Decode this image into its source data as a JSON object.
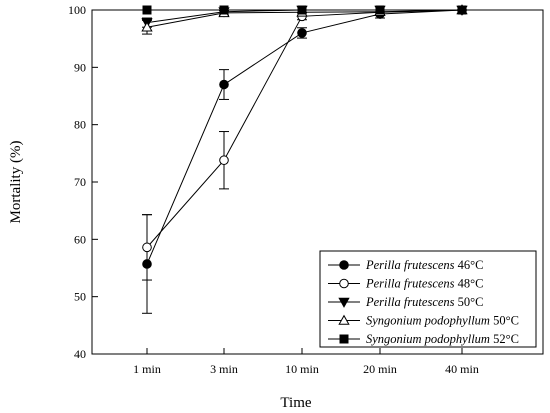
{
  "chart_data": {
    "type": "line",
    "title": "",
    "xlabel": "Time",
    "ylabel": "Mortality (%)",
    "categories": [
      "1 min",
      "3 min",
      "10 min",
      "20 min",
      "40 min"
    ],
    "ylim": [
      40,
      100
    ],
    "yticks": [
      40,
      50,
      60,
      70,
      80,
      90,
      100
    ],
    "grid": false,
    "legend_position": "bottom-right",
    "series": [
      {
        "name": "46°C",
        "species": "Perilla frutescens",
        "marker": "filled-circle",
        "values": [
          55.7,
          87.0,
          96.0,
          99.3,
          100
        ],
        "errors": [
          8.6,
          2.6,
          0.9,
          0.7,
          0
        ]
      },
      {
        "name": "48°C",
        "species": "Perilla frutescens",
        "marker": "open-circle",
        "values": [
          58.6,
          73.8,
          98.9,
          99.6,
          100
        ],
        "errors": [
          5.7,
          5.0,
          0.6,
          0.4,
          0
        ]
      },
      {
        "name": "50°C",
        "species": "Perilla frutescens",
        "marker": "filled-triangle-down",
        "values": [
          97.8,
          99.7,
          100,
          100,
          100
        ],
        "errors": [
          0.8,
          0.3,
          0,
          0,
          0
        ]
      },
      {
        "name": "50°C",
        "species": "Syngonium podophyllum",
        "marker": "open-triangle-up",
        "values": [
          97.0,
          99.5,
          99.6,
          99.7,
          100
        ],
        "errors": [
          1.2,
          0.4,
          0.3,
          0.3,
          0
        ]
      },
      {
        "name": "52°C",
        "species": "Syngonium podophyllum",
        "marker": "filled-square",
        "values": [
          100,
          100,
          100,
          100,
          100
        ],
        "errors": [
          0,
          0,
          0,
          0,
          0
        ]
      }
    ]
  }
}
